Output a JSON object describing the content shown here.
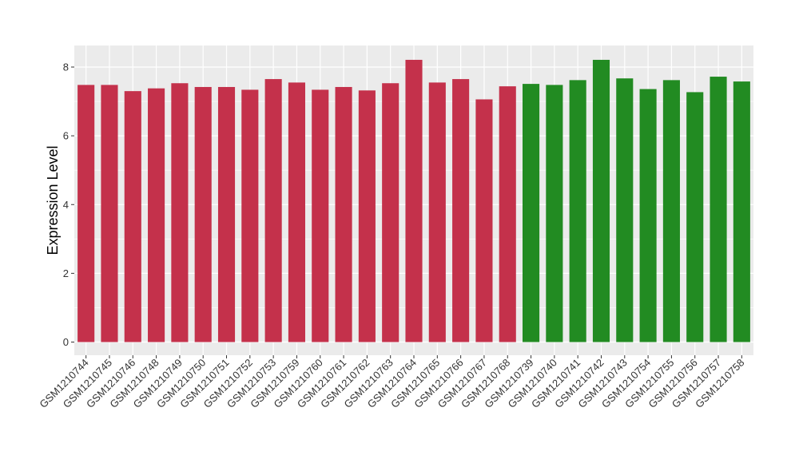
{
  "chart_data": {
    "type": "bar",
    "title": "",
    "xlabel": "",
    "ylabel": "Expression Level",
    "ylim": [
      0,
      8.6
    ],
    "yticks": [
      0,
      2,
      4,
      6,
      8
    ],
    "grid": true,
    "legend": "none",
    "colors": {
      "group_a": "#C4314B",
      "group_b": "#228B22",
      "panel": "#EBEBEB",
      "gridline": "#FFFFFF"
    },
    "categories": [
      "GSM1210744",
      "GSM1210745",
      "GSM1210746",
      "GSM1210748",
      "GSM1210749",
      "GSM1210750",
      "GSM1210751",
      "GSM1210752",
      "GSM1210753",
      "GSM1210759",
      "GSM1210760",
      "GSM1210761",
      "GSM1210762",
      "GSM1210763",
      "GSM1210764",
      "GSM1210765",
      "GSM1210766",
      "GSM1210767",
      "GSM1210768",
      "GSM1210739",
      "GSM1210740",
      "GSM1210741",
      "GSM1210742",
      "GSM1210743",
      "GSM1210754",
      "GSM1210755",
      "GSM1210756",
      "GSM1210757",
      "GSM1210758"
    ],
    "values": [
      7.48,
      7.48,
      7.3,
      7.38,
      7.53,
      7.42,
      7.42,
      7.34,
      7.65,
      7.55,
      7.34,
      7.42,
      7.32,
      7.53,
      8.21,
      7.55,
      7.65,
      7.06,
      7.44,
      7.51,
      7.48,
      7.62,
      8.21,
      7.67,
      7.36,
      7.62,
      7.27,
      7.72,
      7.58
    ],
    "groups": [
      "a",
      "a",
      "a",
      "a",
      "a",
      "a",
      "a",
      "a",
      "a",
      "a",
      "a",
      "a",
      "a",
      "a",
      "a",
      "a",
      "a",
      "a",
      "a",
      "b",
      "b",
      "b",
      "b",
      "b",
      "b",
      "b",
      "b",
      "b",
      "b"
    ]
  }
}
